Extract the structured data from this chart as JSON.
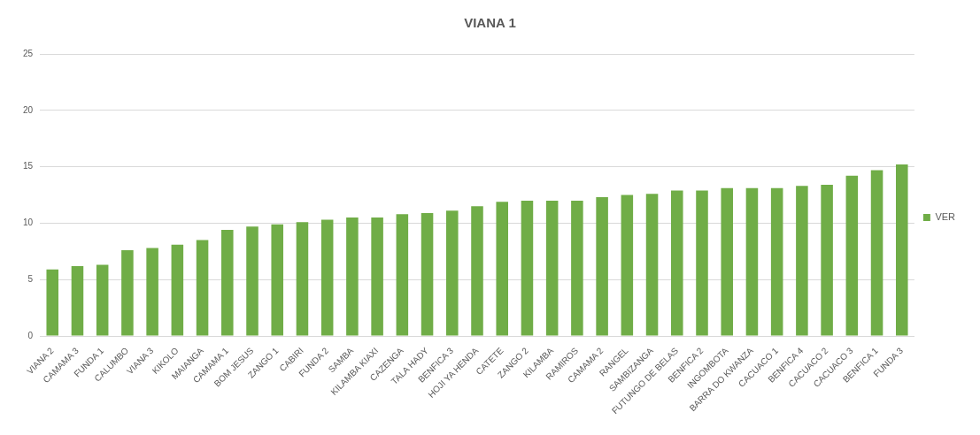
{
  "chart_data": {
    "type": "bar",
    "title": "VIANA 1",
    "categories": [
      "VIANA 2",
      "CAMAMA 3",
      "FUNDA 1",
      "CALUMBO",
      "VIANA 3",
      "KIKOLO",
      "MAIANGA",
      "CAMAMA 1",
      "BOM JESUS",
      "ZANGO 1",
      "CABIRI",
      "FUNDA 2",
      "SAMBA",
      "KILAMBA KIAXI",
      "CAZENGA",
      "TALA HADY",
      "BENFICA 3",
      "HOJI YA HENDA",
      "CATETE",
      "ZANGO 2",
      "KILAMBA",
      "RAMIROS",
      "CAMAMA 2",
      "RANGEL",
      "SAMBIZANGA",
      "FUTUNGO DE BELAS",
      "BENFICA 2",
      "INGOMBOTA",
      "BARRA DO KWANZA",
      "CACUACO 1",
      "BENFICA 4",
      "CACUACO 2",
      "CACUACO 3",
      "BENFICA 1",
      "FUNDA 3"
    ],
    "series": [
      {
        "name": "VER",
        "color": "#70ad47",
        "values": [
          5.9,
          6.2,
          6.3,
          7.6,
          7.8,
          8.1,
          8.5,
          9.4,
          9.7,
          9.9,
          10.1,
          10.3,
          10.5,
          10.5,
          10.8,
          10.9,
          11.1,
          11.5,
          11.9,
          12.0,
          12.0,
          12.0,
          12.3,
          12.5,
          12.6,
          12.9,
          12.9,
          13.1,
          13.1,
          13.1,
          13.3,
          13.4,
          14.2,
          14.7,
          15.2
        ]
      }
    ],
    "ylim": [
      0,
      25
    ],
    "yticks": [
      0,
      5,
      10,
      15,
      20,
      25
    ],
    "grid": "y",
    "legend": "right"
  }
}
